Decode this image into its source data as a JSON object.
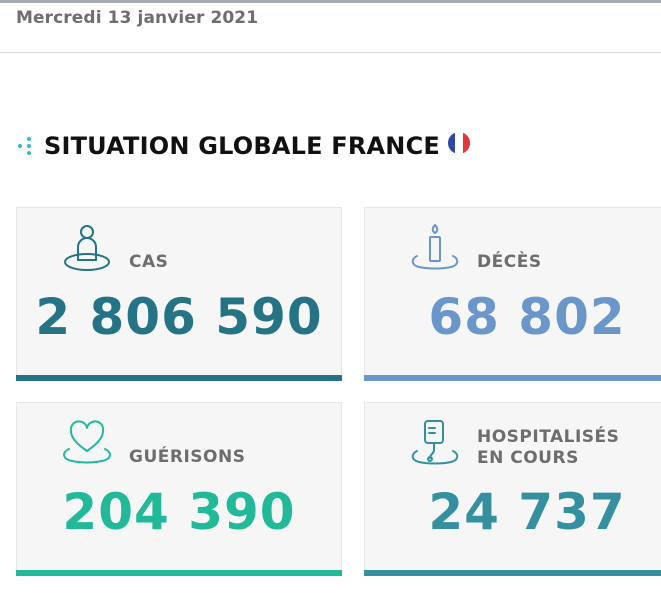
{
  "header": {
    "date": "Mercredi 13 janvier 2021"
  },
  "section": {
    "title": "SITUATION GLOBALE FRANCE"
  },
  "cards": [
    {
      "label": "CAS",
      "value": "2 806 590",
      "color": "#247485",
      "icon": "person-icon"
    },
    {
      "label": "DÉCÈS",
      "value": "68 802",
      "color": "#6b96c9",
      "icon": "candle-icon"
    },
    {
      "label": "GUÉRISONS",
      "value": "204 390",
      "color": "#21b997",
      "icon": "heart-icon"
    },
    {
      "label_line1": "HOSPITALISÉS",
      "label_line2": "EN COURS",
      "value": "24 737",
      "color": "#34909f",
      "icon": "iv-drip-icon"
    }
  ]
}
